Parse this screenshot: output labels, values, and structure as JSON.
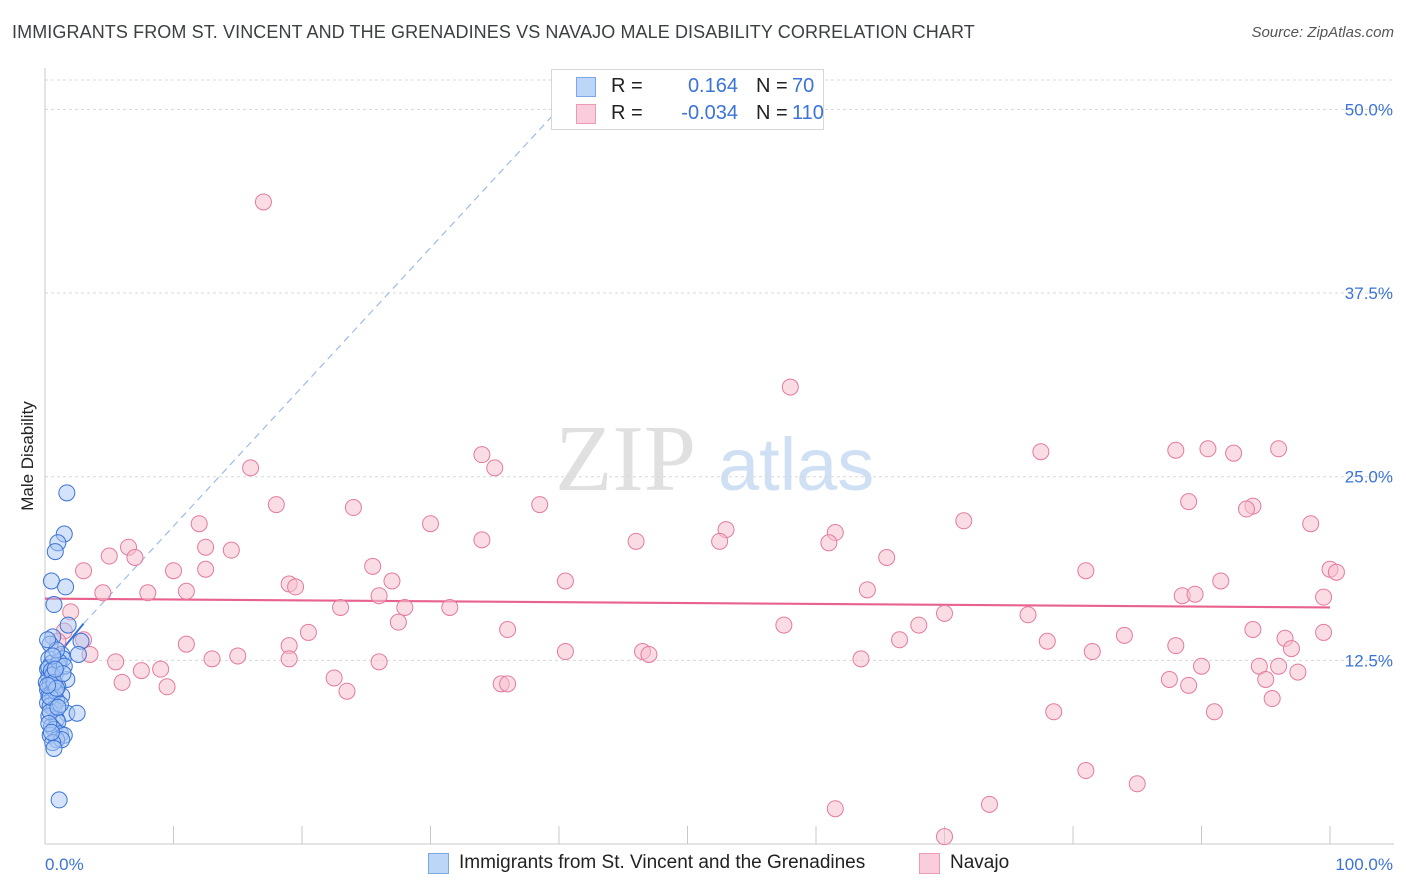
{
  "title": "IMMIGRANTS FROM ST. VINCENT AND THE GRENADINES VS NAVAJO MALE DISABILITY CORRELATION CHART",
  "source": "Source: ZipAtlas.com",
  "watermark": {
    "zip": "ZIP",
    "atlas": "atlas"
  },
  "colors": {
    "blue_fill": "#a9c8f4",
    "blue_stroke": "#3b73d6",
    "blue_line": "#3b73d6",
    "pink_fill": "#f6bfd0",
    "pink_stroke": "#e47b9c",
    "pink_line": "#e8628e",
    "value_text": "#3b73d6",
    "grid": "#d8d8d8"
  },
  "legend_top": [
    {
      "r_label": "R =",
      "r_value": "0.164",
      "n_label": "N =",
      "n_value": "70",
      "series": "blue"
    },
    {
      "r_label": "R =",
      "r_value": "-0.034",
      "n_label": "N =",
      "n_value": "110",
      "series": "pink"
    }
  ],
  "legend_bottom": [
    {
      "label": "Immigrants from St. Vincent and the Grenadines",
      "series": "blue"
    },
    {
      "label": "Navajo",
      "series": "pink"
    }
  ],
  "chart_data": {
    "type": "scatter",
    "title": "IMMIGRANTS FROM ST. VINCENT AND THE GRENADINES VS NAVAJO MALE DISABILITY CORRELATION CHART",
    "xlabel": "",
    "ylabel": "Male Disability",
    "xlim": [
      0,
      100
    ],
    "ylim": [
      0,
      52
    ],
    "x_tick_labels": [
      "0.0%",
      "100.0%"
    ],
    "y_ticks": [
      12.5,
      25.0,
      37.5,
      50.0
    ],
    "y_tick_labels": [
      "12.5%",
      "25.0%",
      "37.5%",
      "50.0%"
    ],
    "grid": true,
    "legend_position": "top-center",
    "series": [
      {
        "name": "Immigrants from St. Vincent and the Grenadines",
        "color": "blue",
        "regression": {
          "x0": 0,
          "y0": 11.8,
          "x1": 3.0,
          "y1": 15.0,
          "style": "solid"
        },
        "trend_extension": {
          "x0": 3.0,
          "y0": 15.0,
          "x1": 41.0,
          "y1": 51.0,
          "style": "dashed"
        },
        "points": [
          [
            1.7,
            23.9
          ],
          [
            1.5,
            21.1
          ],
          [
            1.0,
            20.5
          ],
          [
            0.8,
            19.9
          ],
          [
            0.5,
            17.9
          ],
          [
            1.6,
            17.5
          ],
          [
            0.7,
            16.3
          ],
          [
            1.8,
            14.9
          ],
          [
            0.6,
            14.1
          ],
          [
            2.8,
            13.8
          ],
          [
            0.4,
            13.6
          ],
          [
            1.3,
            12.9
          ],
          [
            2.6,
            12.9
          ],
          [
            0.3,
            12.6
          ],
          [
            1.4,
            12.6
          ],
          [
            0.5,
            12.3
          ],
          [
            1.0,
            12.2
          ],
          [
            0.2,
            11.9
          ],
          [
            0.8,
            11.6
          ],
          [
            0.3,
            11.4
          ],
          [
            0.6,
            11.2
          ],
          [
            1.7,
            11.2
          ],
          [
            0.1,
            11.0
          ],
          [
            0.4,
            10.9
          ],
          [
            0.7,
            10.8
          ],
          [
            1.0,
            10.7
          ],
          [
            0.2,
            10.5
          ],
          [
            0.5,
            10.3
          ],
          [
            0.3,
            10.1
          ],
          [
            1.3,
            10.1
          ],
          [
            0.6,
            9.9
          ],
          [
            0.9,
            9.8
          ],
          [
            0.2,
            9.6
          ],
          [
            0.4,
            9.4
          ],
          [
            0.7,
            9.2
          ],
          [
            1.7,
            8.9
          ],
          [
            2.5,
            8.9
          ],
          [
            0.3,
            8.7
          ],
          [
            0.9,
            8.5
          ],
          [
            1.0,
            8.3
          ],
          [
            0.5,
            8.0
          ],
          [
            0.7,
            7.8
          ],
          [
            1.2,
            7.5
          ],
          [
            0.4,
            7.4
          ],
          [
            1.5,
            7.4
          ],
          [
            0.9,
            7.1
          ],
          [
            1.3,
            7.1
          ],
          [
            0.6,
            6.9
          ],
          [
            0.7,
            6.5
          ],
          [
            1.1,
            3.0
          ],
          [
            0.3,
            12.0
          ],
          [
            0.5,
            11.8
          ],
          [
            0.8,
            10.4
          ],
          [
            0.4,
            9.0
          ],
          [
            0.6,
            11.5
          ],
          [
            1.1,
            12.4
          ],
          [
            0.9,
            13.2
          ],
          [
            0.2,
            13.9
          ],
          [
            1.5,
            12.1
          ],
          [
            0.4,
            10.0
          ],
          [
            0.7,
            11.0
          ],
          [
            0.3,
            8.2
          ],
          [
            1.2,
            9.5
          ],
          [
            0.6,
            12.8
          ],
          [
            0.9,
            10.6
          ],
          [
            0.5,
            7.6
          ],
          [
            1.4,
            11.6
          ],
          [
            0.2,
            10.8
          ],
          [
            1.0,
            9.3
          ],
          [
            0.8,
            11.9
          ]
        ]
      },
      {
        "name": "Navajo",
        "color": "pink",
        "regression": {
          "x0": 0,
          "y0": 16.7,
          "x1": 100,
          "y1": 16.1,
          "style": "solid"
        },
        "points": [
          [
            17.0,
            43.7
          ],
          [
            58.0,
            31.1
          ],
          [
            34.0,
            26.5
          ],
          [
            35.0,
            25.6
          ],
          [
            16.0,
            25.6
          ],
          [
            77.5,
            26.7
          ],
          [
            88.0,
            26.8
          ],
          [
            90.5,
            26.9
          ],
          [
            92.5,
            26.6
          ],
          [
            96.0,
            26.9
          ],
          [
            89.0,
            23.3
          ],
          [
            94.0,
            23.0
          ],
          [
            93.5,
            22.8
          ],
          [
            38.5,
            23.1
          ],
          [
            18.0,
            23.1
          ],
          [
            24.0,
            22.9
          ],
          [
            30.0,
            21.8
          ],
          [
            12.0,
            21.8
          ],
          [
            71.5,
            22.0
          ],
          [
            98.5,
            21.8
          ],
          [
            53.0,
            21.4
          ],
          [
            61.5,
            21.2
          ],
          [
            46.0,
            20.6
          ],
          [
            52.5,
            20.6
          ],
          [
            61.0,
            20.5
          ],
          [
            34.0,
            20.7
          ],
          [
            6.5,
            20.2
          ],
          [
            12.5,
            20.2
          ],
          [
            14.5,
            20.0
          ],
          [
            5.0,
            19.6
          ],
          [
            65.5,
            19.5
          ],
          [
            7.0,
            19.5
          ],
          [
            12.5,
            18.7
          ],
          [
            3.0,
            18.6
          ],
          [
            10.0,
            18.6
          ],
          [
            25.5,
            18.9
          ],
          [
            81.0,
            18.6
          ],
          [
            100.0,
            18.7
          ],
          [
            100.5,
            18.5
          ],
          [
            27.0,
            17.9
          ],
          [
            40.5,
            17.9
          ],
          [
            19.0,
            17.7
          ],
          [
            19.5,
            17.5
          ],
          [
            91.5,
            17.9
          ],
          [
            4.5,
            17.1
          ],
          [
            8.0,
            17.1
          ],
          [
            11.0,
            17.2
          ],
          [
            64.0,
            17.3
          ],
          [
            26.0,
            16.9
          ],
          [
            88.5,
            16.9
          ],
          [
            89.5,
            17.0
          ],
          [
            99.5,
            16.8
          ],
          [
            23.0,
            16.1
          ],
          [
            31.5,
            16.1
          ],
          [
            28.0,
            16.1
          ],
          [
            2.0,
            15.8
          ],
          [
            70.0,
            15.7
          ],
          [
            76.5,
            15.6
          ],
          [
            27.5,
            15.1
          ],
          [
            57.5,
            14.9
          ],
          [
            68.0,
            14.9
          ],
          [
            94.0,
            14.6
          ],
          [
            20.5,
            14.4
          ],
          [
            36.0,
            14.6
          ],
          [
            66.5,
            13.9
          ],
          [
            99.5,
            14.4
          ],
          [
            84.0,
            14.2
          ],
          [
            96.5,
            14.0
          ],
          [
            1.5,
            14.5
          ],
          [
            3.0,
            13.9
          ],
          [
            11.0,
            13.6
          ],
          [
            19.0,
            13.5
          ],
          [
            78.0,
            13.8
          ],
          [
            88.0,
            13.5
          ],
          [
            97.0,
            13.3
          ],
          [
            81.5,
            13.1
          ],
          [
            40.5,
            13.1
          ],
          [
            3.5,
            12.9
          ],
          [
            46.5,
            13.1
          ],
          [
            47.0,
            12.9
          ],
          [
            13.0,
            12.6
          ],
          [
            15.0,
            12.8
          ],
          [
            19.0,
            12.6
          ],
          [
            63.5,
            12.6
          ],
          [
            5.5,
            12.4
          ],
          [
            26.0,
            12.4
          ],
          [
            87.5,
            11.2
          ],
          [
            90.0,
            12.1
          ],
          [
            94.5,
            12.1
          ],
          [
            96.0,
            12.1
          ],
          [
            97.5,
            11.7
          ],
          [
            7.5,
            11.8
          ],
          [
            9.0,
            11.9
          ],
          [
            22.5,
            11.3
          ],
          [
            35.5,
            10.9
          ],
          [
            36.0,
            10.9
          ],
          [
            6.0,
            11.0
          ],
          [
            9.5,
            10.7
          ],
          [
            23.5,
            10.4
          ],
          [
            89.0,
            10.8
          ],
          [
            95.0,
            11.2
          ],
          [
            95.5,
            9.9
          ],
          [
            78.5,
            9.0
          ],
          [
            91.0,
            9.0
          ],
          [
            81.0,
            5.0
          ],
          [
            85.0,
            4.1
          ],
          [
            73.5,
            2.7
          ],
          [
            61.5,
            2.4
          ],
          [
            70.0,
            0.5
          ],
          [
            1.0,
            13.8
          ]
        ]
      }
    ]
  }
}
